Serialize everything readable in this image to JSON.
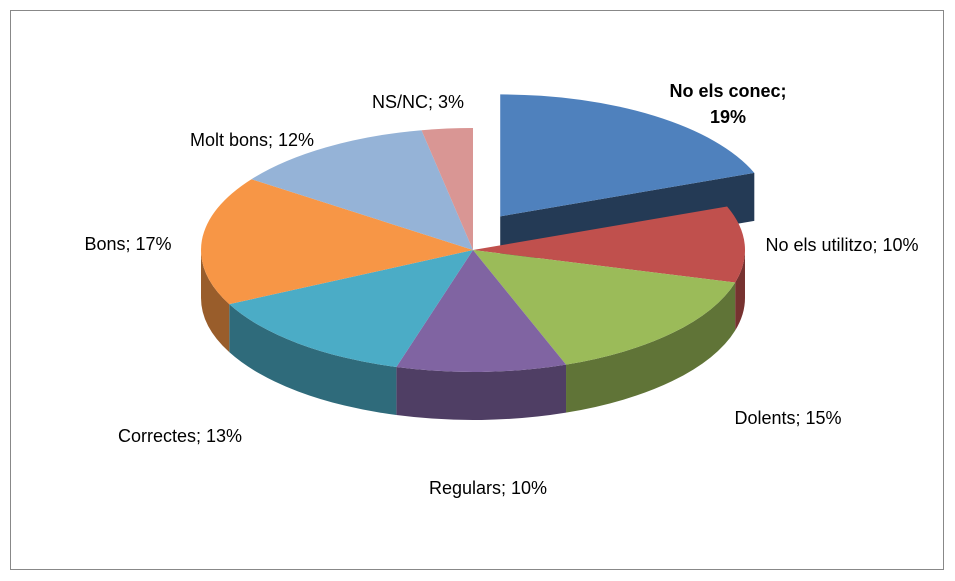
{
  "chart_data": {
    "type": "pie",
    "values": [
      19,
      10,
      15,
      10,
      13,
      17,
      12,
      3
    ],
    "value_labels": [
      "No els conec; 19%",
      "No els utilitzo; 10%",
      "Dolents; 15%",
      "Regulars; 10%",
      "Correctes; 13%",
      "Bons; 17%",
      "Molt bons; 12%",
      "NS/NC; 3%"
    ],
    "colors": [
      "#4f81bd",
      "#c0504d",
      "#9bbb59",
      "#8064a2",
      "#4bacc6",
      "#f79646",
      "#95b3d7",
      "#d99694"
    ]
  }
}
